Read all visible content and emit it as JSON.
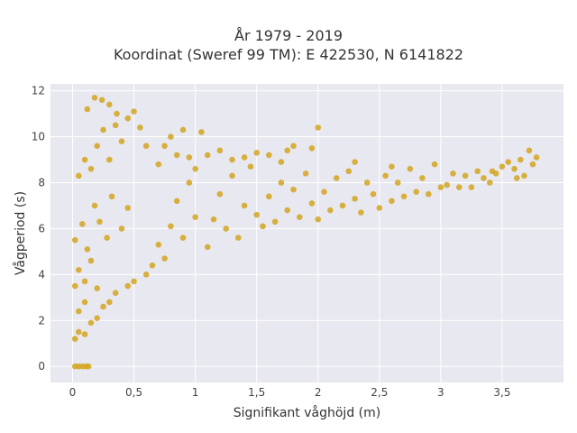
{
  "chart_data": {
    "type": "scatter",
    "title_lines": [
      "År 1979 - 2019",
      "Koordinat (Sweref 99 TM): E 422530, N 6141822"
    ],
    "xlabel": "Signifikant våghöjd (m)",
    "ylabel": "Vågperiod (s)",
    "xlim": [
      -0.18,
      4.0
    ],
    "ylim": [
      -0.7,
      12.3
    ],
    "x_ticks": [
      0,
      0.5,
      1,
      1.5,
      2,
      2.5,
      3,
      3.5
    ],
    "x_tick_labels": [
      "0",
      "0,5",
      "1",
      "1,5",
      "2",
      "2,5",
      "3",
      "3,5"
    ],
    "y_ticks": [
      0,
      2,
      4,
      6,
      8,
      10,
      12
    ],
    "y_tick_labels": [
      "0",
      "2",
      "4",
      "6",
      "8",
      "10",
      "12"
    ],
    "grid": true,
    "colors": {
      "marker": "#D4A520",
      "plot_bg": "#E8E8F0",
      "grid": "#ffffff"
    },
    "series": [
      {
        "points": [
          [
            0.02,
            0
          ],
          [
            0.05,
            0
          ],
          [
            0.08,
            0
          ],
          [
            0.11,
            0
          ],
          [
            0.13,
            0
          ],
          [
            0.02,
            1.2
          ],
          [
            0.05,
            1.5
          ],
          [
            0.1,
            1.4
          ],
          [
            0.15,
            1.9
          ],
          [
            0.05,
            2.4
          ],
          [
            0.1,
            2.8
          ],
          [
            0.2,
            2.1
          ],
          [
            0.25,
            2.6
          ],
          [
            0.3,
            2.8
          ],
          [
            0.02,
            3.5
          ],
          [
            0.05,
            4.2
          ],
          [
            0.1,
            3.7
          ],
          [
            0.15,
            4.6
          ],
          [
            0.2,
            3.4
          ],
          [
            0.35,
            3.2
          ],
          [
            0.45,
            3.5
          ],
          [
            0.5,
            3.7
          ],
          [
            0.6,
            4.0
          ],
          [
            0.02,
            5.5
          ],
          [
            0.08,
            6.2
          ],
          [
            0.12,
            5.1
          ],
          [
            0.18,
            7.0
          ],
          [
            0.22,
            6.3
          ],
          [
            0.28,
            5.6
          ],
          [
            0.32,
            7.4
          ],
          [
            0.4,
            6.0
          ],
          [
            0.45,
            6.9
          ],
          [
            0.05,
            8.3
          ],
          [
            0.1,
            9.0
          ],
          [
            0.15,
            8.6
          ],
          [
            0.2,
            9.6
          ],
          [
            0.25,
            10.3
          ],
          [
            0.3,
            9.0
          ],
          [
            0.35,
            10.5
          ],
          [
            0.4,
            9.8
          ],
          [
            0.45,
            10.8
          ],
          [
            0.12,
            11.2
          ],
          [
            0.18,
            11.7
          ],
          [
            0.24,
            11.6
          ],
          [
            0.3,
            11.4
          ],
          [
            0.36,
            11.0
          ],
          [
            0.5,
            11.1
          ],
          [
            0.55,
            10.4
          ],
          [
            0.6,
            9.6
          ],
          [
            0.65,
            4.4
          ],
          [
            0.7,
            5.3
          ],
          [
            0.75,
            4.7
          ],
          [
            0.8,
            6.1
          ],
          [
            0.85,
            7.2
          ],
          [
            0.9,
            5.6
          ],
          [
            0.95,
            8.0
          ],
          [
            1.0,
            6.5
          ],
          [
            0.7,
            8.8
          ],
          [
            0.75,
            9.6
          ],
          [
            0.8,
            10.0
          ],
          [
            0.85,
            9.2
          ],
          [
            0.9,
            10.3
          ],
          [
            0.95,
            9.1
          ],
          [
            1.0,
            8.6
          ],
          [
            1.05,
            10.2
          ],
          [
            1.1,
            5.2
          ],
          [
            1.15,
            6.4
          ],
          [
            1.2,
            7.5
          ],
          [
            1.25,
            6.0
          ],
          [
            1.3,
            8.3
          ],
          [
            1.35,
            5.6
          ],
          [
            1.4,
            7.0
          ],
          [
            1.45,
            8.7
          ],
          [
            1.5,
            6.6
          ],
          [
            1.1,
            9.2
          ],
          [
            1.2,
            9.4
          ],
          [
            1.3,
            9.0
          ],
          [
            1.4,
            9.1
          ],
          [
            1.5,
            9.3
          ],
          [
            1.6,
            9.2
          ],
          [
            1.7,
            8.9
          ],
          [
            1.75,
            9.4
          ],
          [
            1.8,
            9.6
          ],
          [
            1.55,
            6.1
          ],
          [
            1.6,
            7.4
          ],
          [
            1.65,
            6.3
          ],
          [
            1.7,
            8.0
          ],
          [
            1.75,
            6.8
          ],
          [
            1.8,
            7.7
          ],
          [
            1.85,
            6.5
          ],
          [
            1.9,
            8.4
          ],
          [
            1.95,
            7.1
          ],
          [
            2.0,
            6.4
          ],
          [
            2.05,
            7.6
          ],
          [
            2.1,
            6.8
          ],
          [
            2.15,
            8.2
          ],
          [
            2.2,
            7.0
          ],
          [
            2.25,
            8.5
          ],
          [
            2.3,
            7.3
          ],
          [
            2.35,
            6.7
          ],
          [
            2.4,
            8.0
          ],
          [
            2.45,
            7.5
          ],
          [
            2.5,
            6.9
          ],
          [
            2.55,
            8.3
          ],
          [
            2.6,
            7.2
          ],
          [
            2.65,
            8.0
          ],
          [
            2.7,
            7.4
          ],
          [
            2.75,
            8.6
          ],
          [
            2.8,
            7.6
          ],
          [
            2.85,
            8.2
          ],
          [
            2.9,
            7.5
          ],
          [
            2.95,
            8.8
          ],
          [
            3.0,
            7.8
          ],
          [
            3.05,
            7.9
          ],
          [
            3.1,
            8.4
          ],
          [
            3.15,
            7.8
          ],
          [
            3.2,
            8.3
          ],
          [
            3.25,
            7.8
          ],
          [
            3.3,
            8.5
          ],
          [
            3.35,
            8.2
          ],
          [
            3.4,
            8.0
          ],
          [
            3.45,
            8.4
          ],
          [
            3.5,
            8.7
          ],
          [
            3.55,
            8.9
          ],
          [
            3.6,
            8.6
          ],
          [
            3.65,
            9.0
          ],
          [
            3.72,
            9.4
          ],
          [
            3.78,
            9.1
          ],
          [
            3.42,
            8.5
          ],
          [
            3.62,
            8.2
          ],
          [
            3.68,
            8.3
          ],
          [
            3.75,
            8.8
          ],
          [
            2.0,
            10.4
          ],
          [
            1.95,
            9.5
          ],
          [
            2.3,
            8.9
          ],
          [
            2.6,
            8.7
          ]
        ]
      }
    ]
  }
}
